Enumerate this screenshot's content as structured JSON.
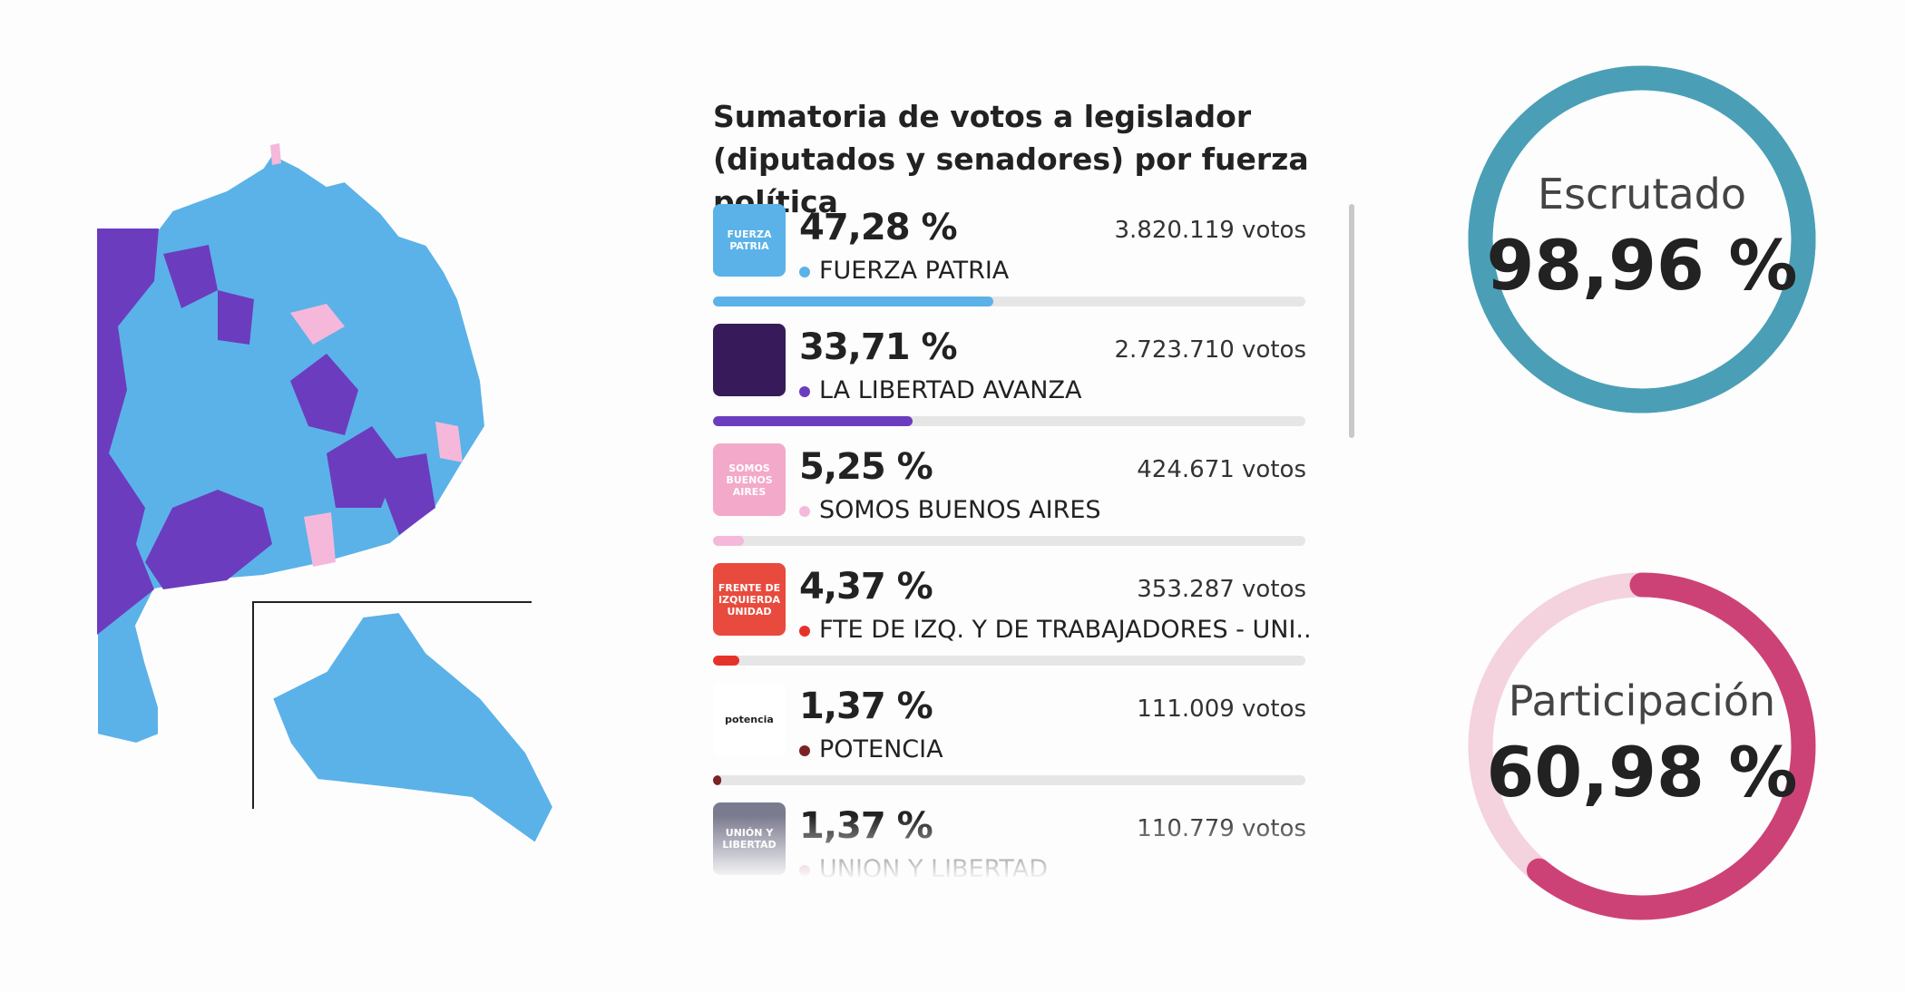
{
  "header": {
    "title": "Sumatoria de votos a legislador (diputados y senadores) por fuerza política"
  },
  "parties": [
    {
      "logo": [
        "FUERZA",
        "PATRIA"
      ],
      "share": {
        "value": 47.28,
        "label": "47,28 %"
      },
      "votes": "3.820.119 votos",
      "name": "FUERZA PATRIA",
      "color": "#5bb2e8",
      "logo_color": "#5bb2e8"
    },
    {
      "logo": [],
      "share": {
        "value": 33.71,
        "label": "33,71 %"
      },
      "votes": "2.723.710 votos",
      "name": "LA LIBERTAD AVANZA",
      "color": "#6c3cbf",
      "logo_color": "#371a5a"
    },
    {
      "logo": [
        "SOMOS",
        "BUENOS AIRES"
      ],
      "share": {
        "value": 5.25,
        "label": "5,25 %"
      },
      "votes": "424.671 votos",
      "name": "SOMOS BUENOS AIRES",
      "color": "#f5b8da",
      "logo_color": "#f3a9c9"
    },
    {
      "logo": [
        "FRENTE DE",
        "IZQUIERDA",
        "UNIDAD"
      ],
      "share": {
        "value": 4.37,
        "label": "4,37 %"
      },
      "votes": "353.287 votos",
      "name": "FTE DE IZQ. Y DE TRABAJADORES - UNI...",
      "color": "#e6332a",
      "logo_color": "#e84a3d"
    },
    {
      "logo": [
        "potencia"
      ],
      "share": {
        "value": 1.37,
        "label": "1,37 %"
      },
      "votes": "111.009 votos",
      "name": "POTENCIA",
      "color": "#7a2325",
      "logo_color": "#ffffff"
    },
    {
      "logo": [
        "UNIÓN Y",
        "LIBERTAD"
      ],
      "share": {
        "value": 1.37,
        "label": "1,37 %"
      },
      "votes": "110.779 votos",
      "name": "UNION Y LIBERTAD",
      "color": "#c97f9c",
      "logo_color": "#7b7b90"
    }
  ],
  "gauges": [
    {
      "label": "Escrutado",
      "share": {
        "value": 98.96,
        "label": "98,96 %"
      },
      "color": "#4a9fb6",
      "track": "#4a9fb6"
    },
    {
      "label": "Participación",
      "share": {
        "value": 60.98,
        "label": "60,98 %"
      },
      "color": "#cd4276",
      "track": "#f4d2de"
    }
  ]
}
